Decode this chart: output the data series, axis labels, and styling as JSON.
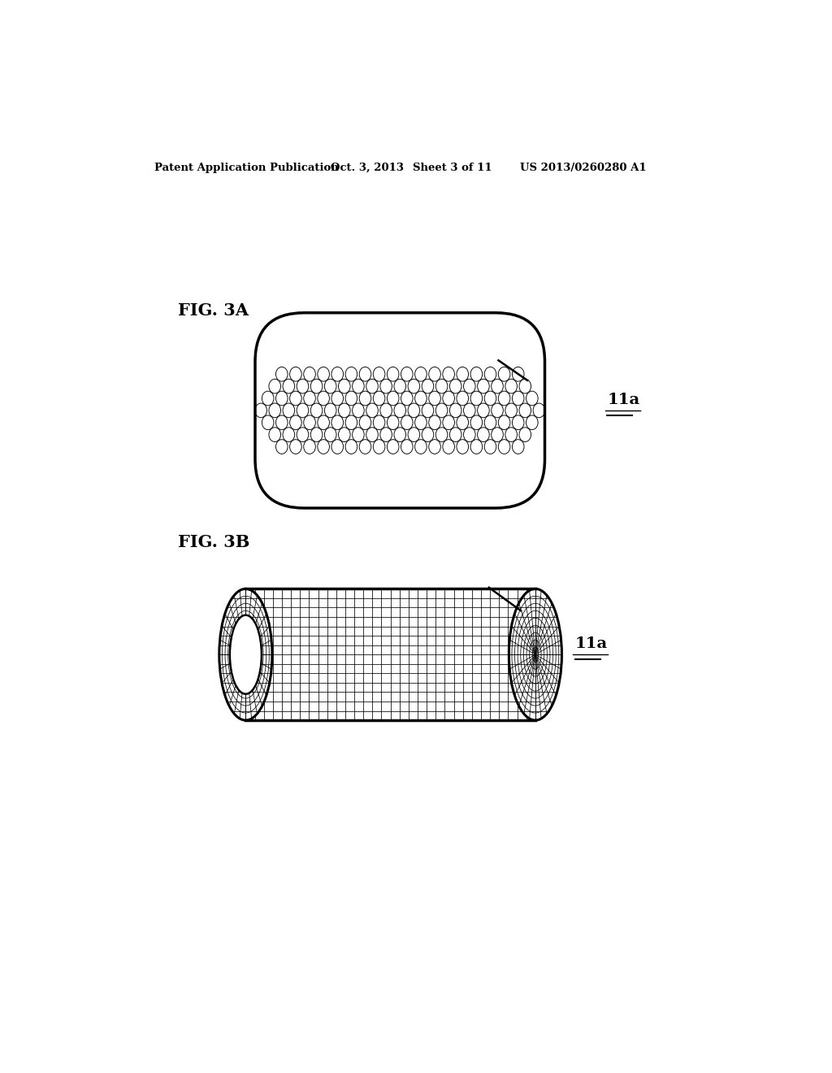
{
  "bg_color": "#ffffff",
  "header_text": "Patent Application Publication",
  "header_date": "Oct. 3, 2013",
  "header_sheet": "Sheet 3 of 11",
  "header_patent": "US 2013/0260280 A1",
  "fig3a_label": "FIG. 3A",
  "fig3b_label": "FIG. 3B",
  "label_11a": "11a"
}
